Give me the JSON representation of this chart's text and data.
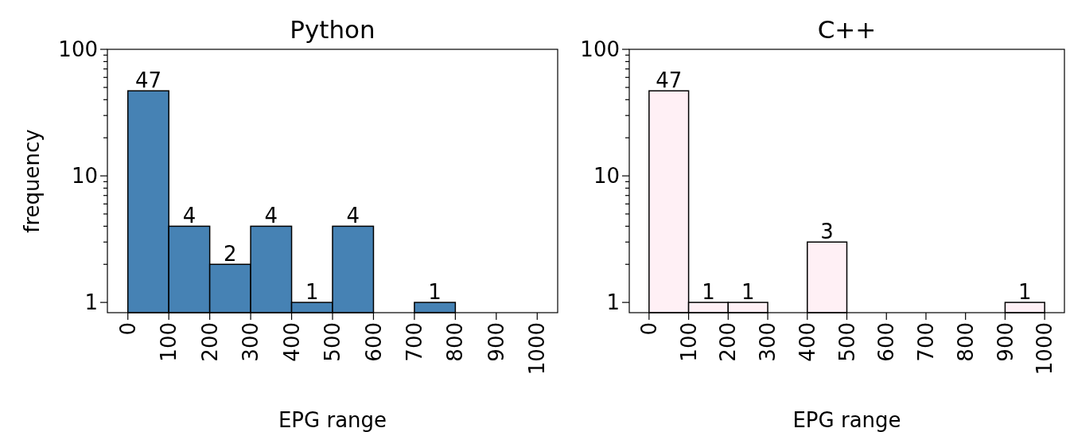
{
  "chart_data": [
    {
      "type": "histogram",
      "title": "Python",
      "xlabel": "EPG range",
      "ylabel": "frequency",
      "bins": [
        0,
        100,
        200,
        300,
        400,
        500,
        600,
        700,
        800,
        900,
        1000
      ],
      "values": [
        47,
        4,
        2,
        4,
        1,
        4,
        null,
        1,
        null,
        null
      ],
      "color": "#4682b4",
      "data_labels": true,
      "log": true,
      "xlim": [
        -50,
        1050
      ],
      "xticks": [
        0,
        100,
        200,
        300,
        400,
        500,
        600,
        700,
        800,
        900,
        1000
      ],
      "ylim": [
        0.83,
        100
      ],
      "yticks": [
        1,
        {
          "value": 2,
          "label": null
        },
        {
          "value": 3,
          "label": null
        },
        {
          "value": 4,
          "label": null
        },
        {
          "value": 5,
          "label": null
        },
        {
          "value": 6,
          "label": null
        },
        {
          "value": 7,
          "label": null
        },
        {
          "value": 8,
          "label": null
        },
        {
          "value": 9,
          "label": null
        },
        10,
        {
          "value": 20,
          "label": null
        },
        {
          "value": 30,
          "label": null
        },
        {
          "value": 40,
          "label": null
        },
        {
          "value": 50,
          "label": null
        },
        {
          "value": 60,
          "label": null
        },
        {
          "value": 70,
          "label": null
        },
        {
          "value": 80,
          "label": null
        },
        {
          "value": 90,
          "label": null
        },
        100
      ]
    },
    {
      "type": "histogram",
      "title": "C++",
      "xlabel": "EPG range",
      "bins": [
        0,
        100,
        200,
        300,
        400,
        500,
        600,
        700,
        800,
        900,
        1000
      ],
      "values": [
        47,
        1,
        1,
        null,
        3,
        null,
        null,
        null,
        null,
        1
      ],
      "color": "#fff0f5",
      "data_labels": true,
      "log": true,
      "xlim": [
        -50,
        1050
      ],
      "xticks": [
        0,
        100,
        200,
        300,
        400,
        500,
        600,
        700,
        800,
        900,
        1000
      ],
      "ylim": [
        0.83,
        100
      ],
      "yticks": [
        1,
        {
          "value": 2,
          "label": null
        },
        {
          "value": 3,
          "label": null
        },
        {
          "value": 4,
          "label": null
        },
        {
          "value": 5,
          "label": null
        },
        {
          "value": 6,
          "label": null
        },
        {
          "value": 7,
          "label": null
        },
        {
          "value": 8,
          "label": null
        },
        {
          "value": 9,
          "label": null
        },
        10,
        {
          "value": 20,
          "label": null
        },
        {
          "value": 30,
          "label": null
        },
        {
          "value": 40,
          "label": null
        },
        {
          "value": 50,
          "label": null
        },
        {
          "value": 60,
          "label": null
        },
        {
          "value": 70,
          "label": null
        },
        {
          "value": 80,
          "label": null
        },
        {
          "value": 90,
          "label": null
        },
        100
      ]
    }
  ]
}
